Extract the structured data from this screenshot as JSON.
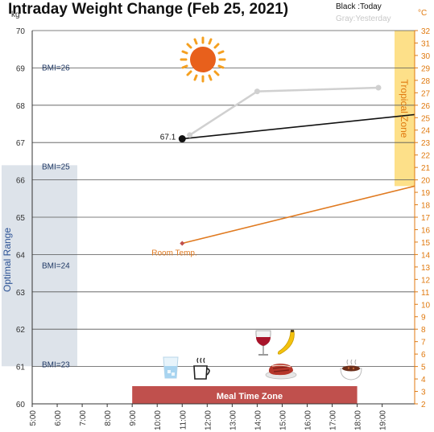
{
  "chart_data": {
    "type": "line",
    "title": "Intraday Weight Change (Feb 25, 2021)",
    "left_axis": {
      "unit": "kg",
      "min": 60,
      "max": 70,
      "ticks": [
        "60",
        "61",
        "62",
        "63",
        "64",
        "65",
        "66",
        "67",
        "68",
        "69",
        "70"
      ]
    },
    "right_axis": {
      "unit": "°C",
      "min": 2,
      "max": 32,
      "ticks": [
        "2",
        "3",
        "4",
        "5",
        "6",
        "7",
        "8",
        "9",
        "10",
        "11",
        "12",
        "13",
        "14",
        "15",
        "16",
        "17",
        "18",
        "19",
        "20",
        "21",
        "22",
        "23",
        "24",
        "25",
        "26",
        "27",
        "28",
        "29",
        "30",
        "31",
        "32"
      ]
    },
    "x_axis": {
      "min_hour": 5,
      "max_hour": 20.3,
      "ticks": [
        "5:00",
        "6:00",
        "7:00",
        "8:00",
        "9:00",
        "10:00",
        "11:00",
        "12:00",
        "13:00",
        "14:00",
        "15:00",
        "16:00",
        "17:00",
        "18:00",
        "19:00"
      ],
      "tick_hours": [
        5,
        6,
        7,
        8,
        9,
        10,
        11,
        12,
        13,
        14,
        15,
        16,
        17,
        18,
        19
      ]
    },
    "legend": {
      "today": "Black :Today",
      "yesterday": "Gray:Yesterday"
    },
    "series": [
      {
        "name": "Today",
        "color": "#111111",
        "points": [
          [
            11.0,
            67.1
          ],
          [
            20.3,
            67.75
          ]
        ],
        "start_label": "67.1"
      },
      {
        "name": "Yesterday",
        "color": "#d0d0d0",
        "points": [
          [
            11.3,
            67.2
          ],
          [
            14.0,
            68.37
          ],
          [
            18.85,
            68.47
          ]
        ]
      },
      {
        "name": "Room Temp.",
        "color": "#e07a20",
        "axis": "right",
        "points": [
          [
            11.0,
            14.9
          ],
          [
            20.3,
            19.5
          ]
        ],
        "label": "Room Temp."
      }
    ],
    "bmi_lines": [
      {
        "label": "BMI=26",
        "value": 69.0
      },
      {
        "label": "BMI=25",
        "value": 66.35
      },
      {
        "label": "BMI=24",
        "value": 63.7
      },
      {
        "label": "BMI=23",
        "value": 61.05
      }
    ],
    "zones": {
      "optimal": {
        "label": "Optimal Range",
        "from": 61.05,
        "to": 66.35,
        "color": "#dde3ea",
        "text_color": "#2f5597"
      },
      "tropical": {
        "label": "Tropical Zone",
        "from_temp": 19.5,
        "to_temp": 32,
        "color": "#fde089",
        "text_color": "#e07a10"
      },
      "meal": {
        "label": "Meal Time Zone",
        "from_hour": 9.0,
        "to_hour": 18.0,
        "color": "#c0504d"
      }
    },
    "icons": [
      "sun-icon",
      "water-glass-icon",
      "coffee-cup-icon",
      "wine-glass-icon",
      "banana-icon",
      "steak-icon",
      "soup-bowl-icon"
    ]
  }
}
